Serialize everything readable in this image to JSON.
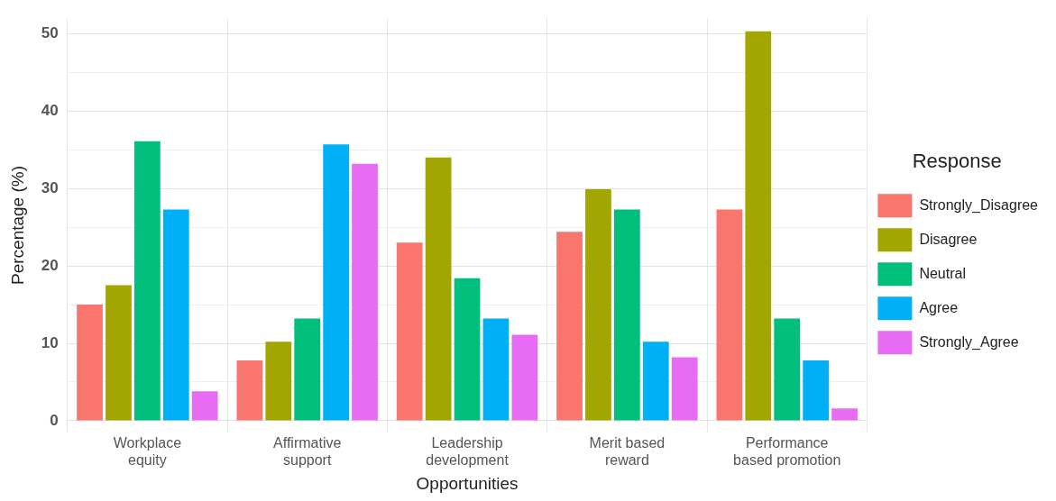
{
  "chart_data": {
    "type": "bar",
    "xlabel": "Opportunities",
    "ylabel": "Percentage (%)",
    "legend_title": "Response",
    "categories": [
      "Workplace\nequity",
      "Affirmative\nsupport",
      "Leadership\ndevelopment",
      "Merit based\nreward",
      "Performance\nbased promotion"
    ],
    "series": [
      {
        "name": "Strongly_Disagree",
        "color": "#f8766d",
        "values": [
          15.0,
          7.8,
          23.0,
          24.4,
          27.3
        ]
      },
      {
        "name": "Disagree",
        "color": "#a3a500",
        "values": [
          17.5,
          10.2,
          34.0,
          29.9,
          50.3
        ]
      },
      {
        "name": "Neutral",
        "color": "#00bf7d",
        "values": [
          36.1,
          13.2,
          18.4,
          27.3,
          13.2
        ]
      },
      {
        "name": "Agree",
        "color": "#00b0f6",
        "values": [
          27.3,
          35.7,
          13.2,
          10.2,
          7.8
        ]
      },
      {
        "name": "Strongly_Agree",
        "color": "#e76bf3",
        "values": [
          3.8,
          33.2,
          11.1,
          8.2,
          1.6
        ]
      }
    ],
    "ylim": [
      -1.5,
      52
    ],
    "yticks": [
      0,
      {
        "value": 5,
        "label": null
      },
      10,
      {
        "value": 15,
        "label": null
      },
      20,
      {
        "value": 25,
        "label": null
      },
      30,
      {
        "value": 35,
        "label": null
      },
      40,
      {
        "value": 45,
        "label": null
      },
      50
    ],
    "grid": true,
    "legend": "right"
  }
}
